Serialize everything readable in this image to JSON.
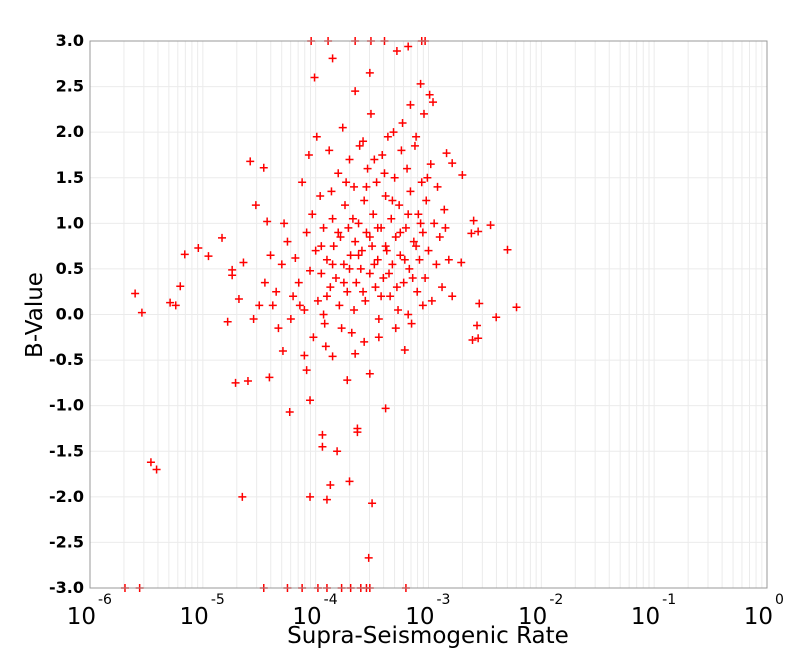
{
  "chart_data": {
    "type": "scatter",
    "title": "",
    "xlabel": "Supra-Seismogenic Rate",
    "ylabel": "B-Value",
    "x_scale": "log10",
    "xlim_log10": [
      -6,
      0
    ],
    "ylim": [
      -3.0,
      3.0
    ],
    "grid": true,
    "marker": "plus",
    "color": "#ff0000",
    "x_tick_base": "10",
    "x_tick_exponents": [
      "-6",
      "-5",
      "-4",
      "-3",
      "-2",
      "-1",
      "0"
    ],
    "y_ticks": [
      "3.0",
      "2.5",
      "2.0",
      "1.5",
      "1.0",
      "0.5",
      "0.0",
      "-0.5",
      "-1.0",
      "-1.5",
      "-2.0",
      "-2.5",
      "-3.0"
    ],
    "points_note": "each point is [log10(rate), b-value]",
    "points": [
      [
        -5.6,
        0.23
      ],
      [
        -5.54,
        0.02
      ],
      [
        -5.46,
        -1.62
      ],
      [
        -5.41,
        -1.7
      ],
      [
        -5.69,
        -3.0
      ],
      [
        -5.56,
        -3.0
      ],
      [
        -5.29,
        0.13
      ],
      [
        -5.24,
        0.1
      ],
      [
        -5.2,
        0.31
      ],
      [
        -5.16,
        0.66
      ],
      [
        -5.04,
        0.73
      ],
      [
        -4.95,
        0.64
      ],
      [
        -4.83,
        0.84
      ],
      [
        -4.78,
        -0.08
      ],
      [
        -4.74,
        0.49
      ],
      [
        -4.74,
        0.43
      ],
      [
        -4.71,
        -0.75
      ],
      [
        -4.65,
        -2.0
      ],
      [
        -4.68,
        0.17
      ],
      [
        -4.64,
        0.57
      ],
      [
        -4.6,
        -0.73
      ],
      [
        -4.58,
        1.68
      ],
      [
        -4.53,
        1.2
      ],
      [
        -4.46,
        1.61
      ],
      [
        -4.43,
        1.02
      ],
      [
        -4.41,
        -0.69
      ],
      [
        -4.46,
        -3.0
      ],
      [
        -4.23,
        -1.07
      ],
      [
        -4.05,
        -0.94
      ],
      [
        -4.05,
        -2.0
      ],
      [
        -4.01,
        2.6
      ],
      [
        -4.04,
        3.0
      ],
      [
        -3.94,
        -1.32
      ],
      [
        -3.94,
        -1.45
      ],
      [
        -3.9,
        -2.03
      ],
      [
        -3.87,
        -1.87
      ],
      [
        -3.81,
        -1.5
      ],
      [
        -3.7,
        -1.83
      ],
      [
        -3.63,
        -1.25
      ],
      [
        -3.63,
        -1.29
      ],
      [
        -3.5,
        -2.07
      ],
      [
        -3.53,
        -2.67
      ],
      [
        -3.38,
        -1.03
      ],
      [
        -3.85,
        2.81
      ],
      [
        -3.52,
        2.65
      ],
      [
        -3.65,
        2.45
      ],
      [
        -3.28,
        2.89
      ],
      [
        -3.18,
        2.94
      ],
      [
        -3.07,
        2.53
      ],
      [
        -2.99,
        2.41
      ],
      [
        -2.96,
        2.33
      ],
      [
        -2.84,
        1.77
      ],
      [
        -2.7,
        1.53
      ],
      [
        -2.79,
        1.66
      ],
      [
        -2.6,
        1.03
      ],
      [
        -2.45,
        0.98
      ],
      [
        -2.56,
        0.91
      ],
      [
        -2.3,
        0.71
      ],
      [
        -2.22,
        0.08
      ],
      [
        -2.4,
        -0.03
      ],
      [
        -2.57,
        -0.12
      ],
      [
        -2.56,
        -0.26
      ],
      [
        -2.61,
        -0.28
      ],
      [
        -2.55,
        0.12
      ],
      [
        -2.79,
        0.2
      ],
      [
        -2.71,
        0.57
      ],
      [
        -2.62,
        0.89
      ],
      [
        -3.21,
        -0.39
      ],
      [
        -3.52,
        -0.65
      ],
      [
        -3.72,
        -0.72
      ],
      [
        -4.08,
        -0.61
      ],
      [
        -4.1,
        -0.45
      ],
      [
        -4.29,
        -0.4
      ],
      [
        -3.65,
        -0.43
      ],
      [
        -3.85,
        -0.46
      ],
      [
        -3.03,
        3.0
      ],
      [
        -3.2,
        -3.0
      ],
      [
        -4.25,
        -3.0
      ],
      [
        -4.12,
        -3.0
      ],
      [
        -3.98,
        -3.0
      ],
      [
        -3.9,
        -3.0
      ],
      [
        -3.77,
        -3.0
      ],
      [
        -3.69,
        -3.0
      ],
      [
        -3.6,
        -3.0
      ],
      [
        -3.55,
        -3.0
      ],
      [
        -3.52,
        -3.0
      ],
      [
        -3.89,
        3.0
      ],
      [
        -3.65,
        3.0
      ],
      [
        -3.51,
        3.0
      ],
      [
        -3.39,
        3.0
      ],
      [
        -3.06,
        3.0
      ],
      [
        -4.3,
        0.55
      ],
      [
        -4.25,
        0.8
      ],
      [
        -4.2,
        0.2
      ],
      [
        -4.18,
        0.62
      ],
      [
        -4.15,
        0.35
      ],
      [
        -4.12,
        1.45
      ],
      [
        -4.1,
        0.05
      ],
      [
        -4.08,
        0.9
      ],
      [
        -4.05,
        0.48
      ],
      [
        -4.03,
        1.1
      ],
      [
        -4.0,
        0.7
      ],
      [
        -3.98,
        0.15
      ],
      [
        -3.96,
        1.3
      ],
      [
        -3.95,
        0.45
      ],
      [
        -3.93,
        0.95
      ],
      [
        -3.92,
        -0.1
      ],
      [
        -3.9,
        0.6
      ],
      [
        -3.88,
        1.8
      ],
      [
        -3.87,
        0.3
      ],
      [
        -3.85,
        1.05
      ],
      [
        -3.84,
        0.75
      ],
      [
        -3.82,
        0.4
      ],
      [
        -3.8,
        1.55
      ],
      [
        -3.79,
        0.1
      ],
      [
        -3.78,
        0.85
      ],
      [
        -3.76,
        2.05
      ],
      [
        -3.75,
        0.55
      ],
      [
        -3.74,
        1.2
      ],
      [
        -3.72,
        0.25
      ],
      [
        -3.71,
        0.95
      ],
      [
        -3.7,
        1.7
      ],
      [
        -3.69,
        0.65
      ],
      [
        -3.68,
        -0.2
      ],
      [
        -3.66,
        1.4
      ],
      [
        -3.65,
        0.8
      ],
      [
        -3.64,
        0.35
      ],
      [
        -3.62,
        1.0
      ],
      [
        -3.61,
        1.85
      ],
      [
        -3.6,
        0.5
      ],
      [
        -3.59,
        0.7
      ],
      [
        -3.57,
        1.25
      ],
      [
        -3.56,
        0.15
      ],
      [
        -3.55,
        0.9
      ],
      [
        -3.54,
        1.6
      ],
      [
        -3.52,
        0.45
      ],
      [
        -3.51,
        2.2
      ],
      [
        -3.5,
        0.75
      ],
      [
        -3.49,
        1.1
      ],
      [
        -3.47,
        0.3
      ],
      [
        -3.46,
        1.45
      ],
      [
        -3.45,
        0.6
      ],
      [
        -3.44,
        -0.05
      ],
      [
        -3.42,
        0.95
      ],
      [
        -3.41,
        1.75
      ],
      [
        -3.4,
        0.4
      ],
      [
        -3.38,
        1.3
      ],
      [
        -3.37,
        0.7
      ],
      [
        -3.36,
        1.95
      ],
      [
        -3.34,
        0.2
      ],
      [
        -3.33,
        1.05
      ],
      [
        -3.32,
        0.55
      ],
      [
        -3.3,
        1.5
      ],
      [
        -3.29,
        0.85
      ],
      [
        -3.27,
        0.05
      ],
      [
        -3.26,
        1.2
      ],
      [
        -3.25,
        0.65
      ],
      [
        -3.23,
        2.1
      ],
      [
        -3.22,
        0.35
      ],
      [
        -3.2,
        0.95
      ],
      [
        -3.19,
        1.6
      ],
      [
        -3.17,
        0.5
      ],
      [
        -3.16,
        1.35
      ],
      [
        -3.15,
        -0.1
      ],
      [
        -3.13,
        0.8
      ],
      [
        -3.12,
        1.85
      ],
      [
        -3.1,
        0.25
      ],
      [
        -3.09,
        1.1
      ],
      [
        -3.08,
        0.6
      ],
      [
        -3.06,
        1.45
      ],
      [
        -3.05,
        0.9
      ],
      [
        -3.03,
        0.4
      ],
      [
        -3.02,
        1.25
      ],
      [
        -3.0,
        0.7
      ],
      [
        -2.98,
        1.65
      ],
      [
        -2.97,
        0.15
      ],
      [
        -2.95,
        1.0
      ],
      [
        -2.93,
        0.55
      ],
      [
        -2.92,
        1.4
      ],
      [
        -2.9,
        0.85
      ],
      [
        -2.88,
        0.3
      ],
      [
        -2.86,
        1.15
      ],
      [
        -2.85,
        0.95
      ],
      [
        -2.82,
        0.6
      ],
      [
        -3.95,
        0.75
      ],
      [
        -3.9,
        0.2
      ],
      [
        -3.85,
        0.55
      ],
      [
        -3.8,
        0.9
      ],
      [
        -3.75,
        0.35
      ],
      [
        -3.7,
        0.5
      ],
      [
        -3.66,
        0.05
      ],
      [
        -3.62,
        0.65
      ],
      [
        -3.58,
        0.25
      ],
      [
        -3.55,
        1.4
      ],
      [
        -3.52,
        0.85
      ],
      [
        -3.48,
        0.55
      ],
      [
        -3.45,
        0.95
      ],
      [
        -3.42,
        0.2
      ],
      [
        -3.38,
        0.75
      ],
      [
        -3.35,
        0.45
      ],
      [
        -3.32,
        1.25
      ],
      [
        -3.28,
        0.3
      ],
      [
        -3.25,
        0.9
      ],
      [
        -3.21,
        0.6
      ],
      [
        -3.18,
        1.1
      ],
      [
        -3.14,
        0.4
      ],
      [
        -3.11,
        0.75
      ],
      [
        -3.07,
        1.0
      ],
      [
        -4.35,
        0.25
      ],
      [
        -4.4,
        0.65
      ],
      [
        -4.22,
        -0.05
      ],
      [
        -4.28,
        1.0
      ],
      [
        -4.06,
        1.75
      ],
      [
        -3.99,
        1.95
      ],
      [
        -3.93,
        0.0
      ],
      [
        -3.86,
        1.35
      ],
      [
        -3.73,
        1.45
      ],
      [
        -3.67,
        1.05
      ],
      [
        -3.58,
        1.9
      ],
      [
        -3.48,
        1.7
      ],
      [
        -3.39,
        1.55
      ],
      [
        -3.31,
        2.0
      ],
      [
        -3.24,
        1.8
      ],
      [
        -3.16,
        2.3
      ],
      [
        -3.11,
        1.95
      ],
      [
        -3.04,
        2.2
      ],
      [
        -3.01,
        1.5
      ],
      [
        -3.57,
        -0.3
      ],
      [
        -3.44,
        -0.25
      ],
      [
        -3.29,
        -0.15
      ],
      [
        -3.18,
        0.0
      ],
      [
        -3.05,
        0.1
      ],
      [
        -4.14,
        0.1
      ],
      [
        -4.02,
        -0.25
      ],
      [
        -3.91,
        -0.35
      ],
      [
        -3.77,
        -0.15
      ],
      [
        -4.45,
        0.35
      ],
      [
        -4.5,
        0.1
      ],
      [
        -4.55,
        -0.05
      ],
      [
        -4.38,
        0.1
      ],
      [
        -4.33,
        -0.15
      ]
    ]
  }
}
